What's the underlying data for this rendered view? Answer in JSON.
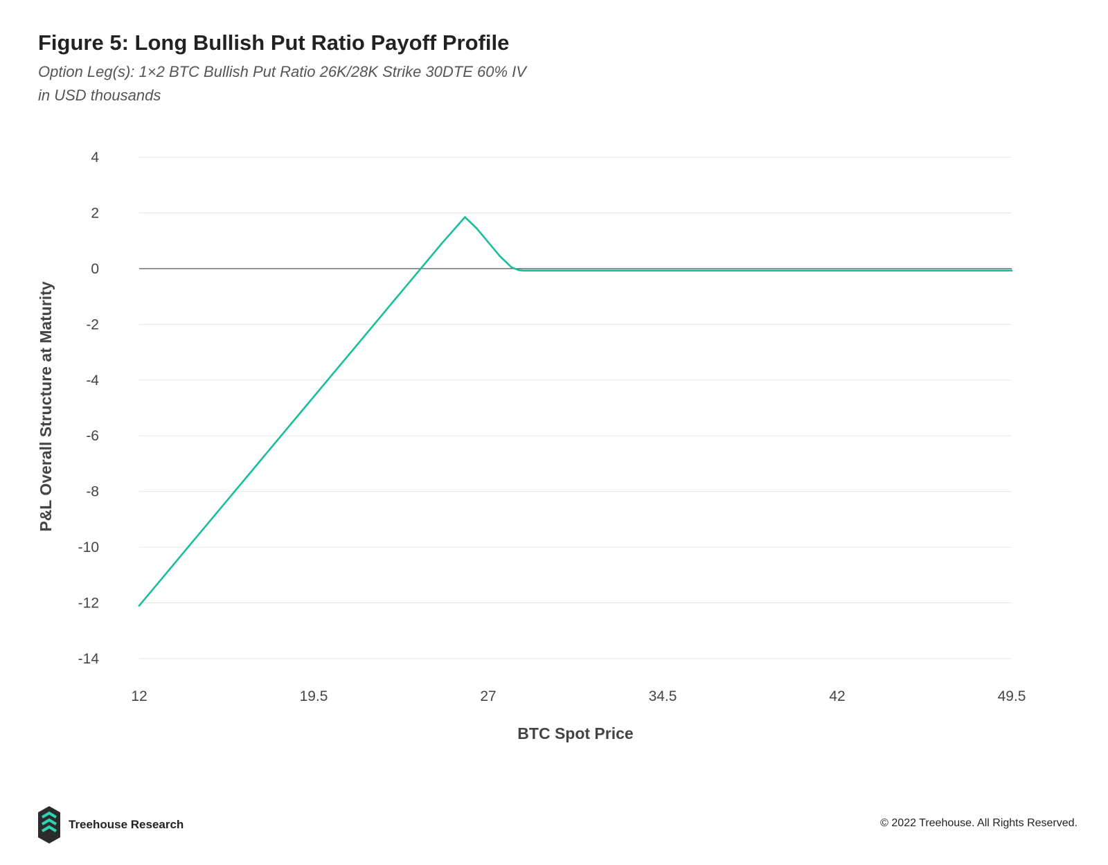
{
  "title": "Figure 5: Long Bullish Put Ratio Payoff Profile",
  "subtitle_line1": "Option Leg(s): 1×2 BTC Bullish Put Ratio 26K/28K Strike 30DTE 60% IV",
  "subtitle_line2": "in USD thousands",
  "footer": {
    "brand": "Treehouse Research",
    "copyright": "© 2022 Treehouse. All Rights Reserved."
  },
  "colors": {
    "line": "#1ABC9C",
    "grid": "#E6E6E6",
    "zero_line": "#555555",
    "logo_dark": "#2B2B2B",
    "logo_accent": "#2DD4B4"
  },
  "chart_data": {
    "type": "line",
    "xlabel": "BTC Spot Price",
    "ylabel": "P&L Overall Structure at Maturity",
    "xlim": [
      12,
      49.5
    ],
    "ylim": [
      -14,
      4
    ],
    "x_ticks": [
      "12",
      "19.5",
      "27",
      "34.5",
      "42",
      "49.5"
    ],
    "y_ticks": [
      "4",
      "2",
      "0",
      "-2",
      "-4",
      "-6",
      "-8",
      "-10",
      "-12",
      "-14"
    ],
    "grid": true,
    "series": [
      {
        "x": [
          12,
          13,
          14,
          15,
          16,
          17,
          18,
          19,
          20,
          21,
          22,
          23,
          24,
          25,
          26,
          26.5,
          27,
          27.5,
          28,
          28.3,
          28.5,
          29,
          30,
          32,
          35,
          38,
          41,
          44,
          47,
          49.5
        ],
        "values": [
          -12.1,
          -11.1,
          -10.1,
          -9.1,
          -8.1,
          -7.1,
          -6.1,
          -5.1,
          -4.1,
          -3.1,
          -2.1,
          -1.1,
          -0.1,
          0.9,
          1.85,
          1.45,
          0.95,
          0.45,
          0.05,
          -0.05,
          -0.07,
          -0.07,
          -0.07,
          -0.07,
          -0.07,
          -0.07,
          -0.07,
          -0.07,
          -0.07,
          -0.07
        ]
      }
    ]
  }
}
